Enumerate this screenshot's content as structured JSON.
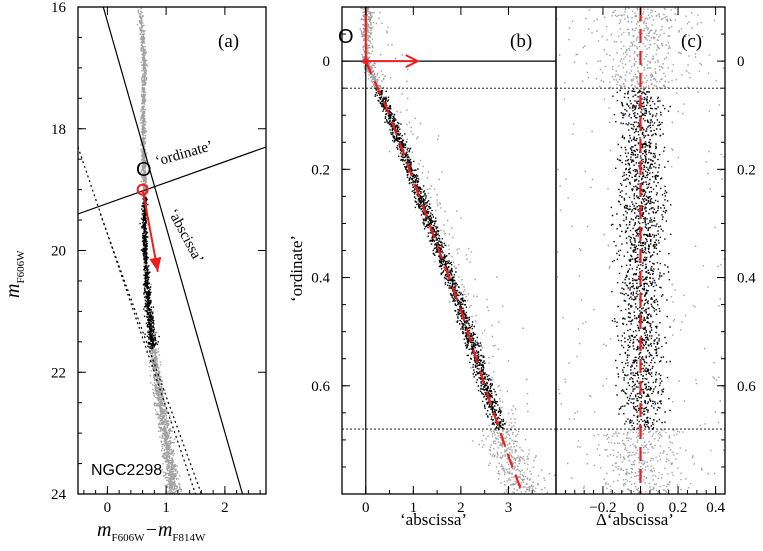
{
  "figure": {
    "colors": {
      "faint": "#a0a0a0",
      "selected": "#000000",
      "accent": "#ee1c1c"
    }
  },
  "chart_data": [
    {
      "type": "scatter",
      "panel_label": "(a)",
      "cluster_name": "NGC2298",
      "xlabel": "m",
      "xlabel_sub1": "F606W",
      "xlabel_minus": "−m",
      "xlabel_sub2": "F814W",
      "ylabel": "m",
      "ylabel_sub": "F606W",
      "xlim": [
        -0.5,
        2.7
      ],
      "ylim": [
        24,
        16
      ],
      "y_inverted": true,
      "xticks": [
        0,
        1,
        2
      ],
      "xtick_labels": [
        "0",
        "1",
        "2"
      ],
      "yticks": [
        16,
        18,
        20,
        22,
        24
      ],
      "ytick_labels": [
        "16",
        "18",
        "20",
        "22",
        "24"
      ],
      "origin_label": "O",
      "origin": {
        "x": 0.6,
        "y": 19.0
      },
      "annotations": {
        "ordinate": "‘ordinate’",
        "abscissa": "‘abscissa’"
      },
      "sequence_ridge": [
        {
          "mag": 16.0,
          "color": 0.55
        },
        {
          "mag": 17.0,
          "color": 0.62
        },
        {
          "mag": 17.5,
          "color": 0.6
        },
        {
          "mag": 18.0,
          "color": 0.6
        },
        {
          "mag": 18.5,
          "color": 0.61
        },
        {
          "mag": 19.0,
          "color": 0.63
        },
        {
          "mag": 19.5,
          "color": 0.62
        },
        {
          "mag": 20.0,
          "color": 0.63
        },
        {
          "mag": 20.5,
          "color": 0.66
        },
        {
          "mag": 21.0,
          "color": 0.7
        },
        {
          "mag": 21.5,
          "color": 0.76
        },
        {
          "mag": 22.0,
          "color": 0.82
        },
        {
          "mag": 22.5,
          "color": 0.9
        },
        {
          "mag": 23.0,
          "color": 0.98
        },
        {
          "mag": 23.5,
          "color": 1.05
        },
        {
          "mag": 24.0,
          "color": 1.12
        }
      ],
      "selected_mag_range": [
        19.1,
        21.6
      ],
      "rotated_axes": {
        "ordinate_line": [
          [
            -0.5,
            19.4
          ],
          [
            2.7,
            18.3
          ]
        ],
        "abscissa_line": [
          [
            -0.07,
            16.0
          ],
          [
            2.3,
            24.0
          ]
        ],
        "dotted_line_1": [
          [
            -0.5,
            18.3
          ],
          [
            1.5,
            24.0
          ]
        ],
        "dotted_line_2": [
          [
            -0.12,
            19.4
          ],
          [
            1.6,
            24.0
          ]
        ]
      },
      "arrow": {
        "from": [
          0.6,
          19.0
        ],
        "to": [
          0.86,
          20.35
        ]
      }
    },
    {
      "type": "scatter",
      "panel_label": "(b)",
      "xlabel": "‘abscissa’",
      "ylabel": "‘ordinate’",
      "xlim": [
        -0.5,
        4.0
      ],
      "ylim": [
        0.8,
        -0.1
      ],
      "y_inverted": true,
      "xticks": [
        0,
        1,
        2,
        3
      ],
      "xtick_labels": [
        "0",
        "1",
        "2",
        "3"
      ],
      "yticks": [
        0,
        0.2,
        0.4,
        0.6
      ],
      "ytick_labels": [
        "0",
        "0.2",
        "0.4",
        "0.6"
      ],
      "origin_label": "O",
      "selection_limits_ordinate": [
        0.05,
        0.68
      ],
      "fiducial_line": [
        {
          "x": 0.0,
          "y": 0.0
        },
        {
          "x": 0.25,
          "y": 0.05
        },
        {
          "x": 0.5,
          "y": 0.1
        },
        {
          "x": 1.0,
          "y": 0.22
        },
        {
          "x": 1.5,
          "y": 0.34
        },
        {
          "x": 2.0,
          "y": 0.46
        },
        {
          "x": 2.5,
          "y": 0.6
        },
        {
          "x": 3.0,
          "y": 0.73
        },
        {
          "x": 3.3,
          "y": 0.8
        }
      ]
    },
    {
      "type": "scatter",
      "panel_label": "(c)",
      "xlabel": "Δ‘abscissa’",
      "xlim": [
        -0.45,
        0.45
      ],
      "ylim": [
        0.8,
        -0.1
      ],
      "y_inverted": true,
      "xticks": [
        -0.2,
        0,
        0.2,
        0.4
      ],
      "xtick_labels": [
        "−0.2",
        "0",
        "0.2",
        "0.4"
      ],
      "yticks": [
        0,
        0.2,
        0.4,
        0.6
      ],
      "ytick_labels": [
        "0",
        "0.2",
        "0.4",
        "0.6"
      ],
      "y_ticks_side": "right",
      "selection_limits_ordinate": [
        0.05,
        0.68
      ],
      "reference_x": 0,
      "spread_sigma": 0.06
    }
  ]
}
